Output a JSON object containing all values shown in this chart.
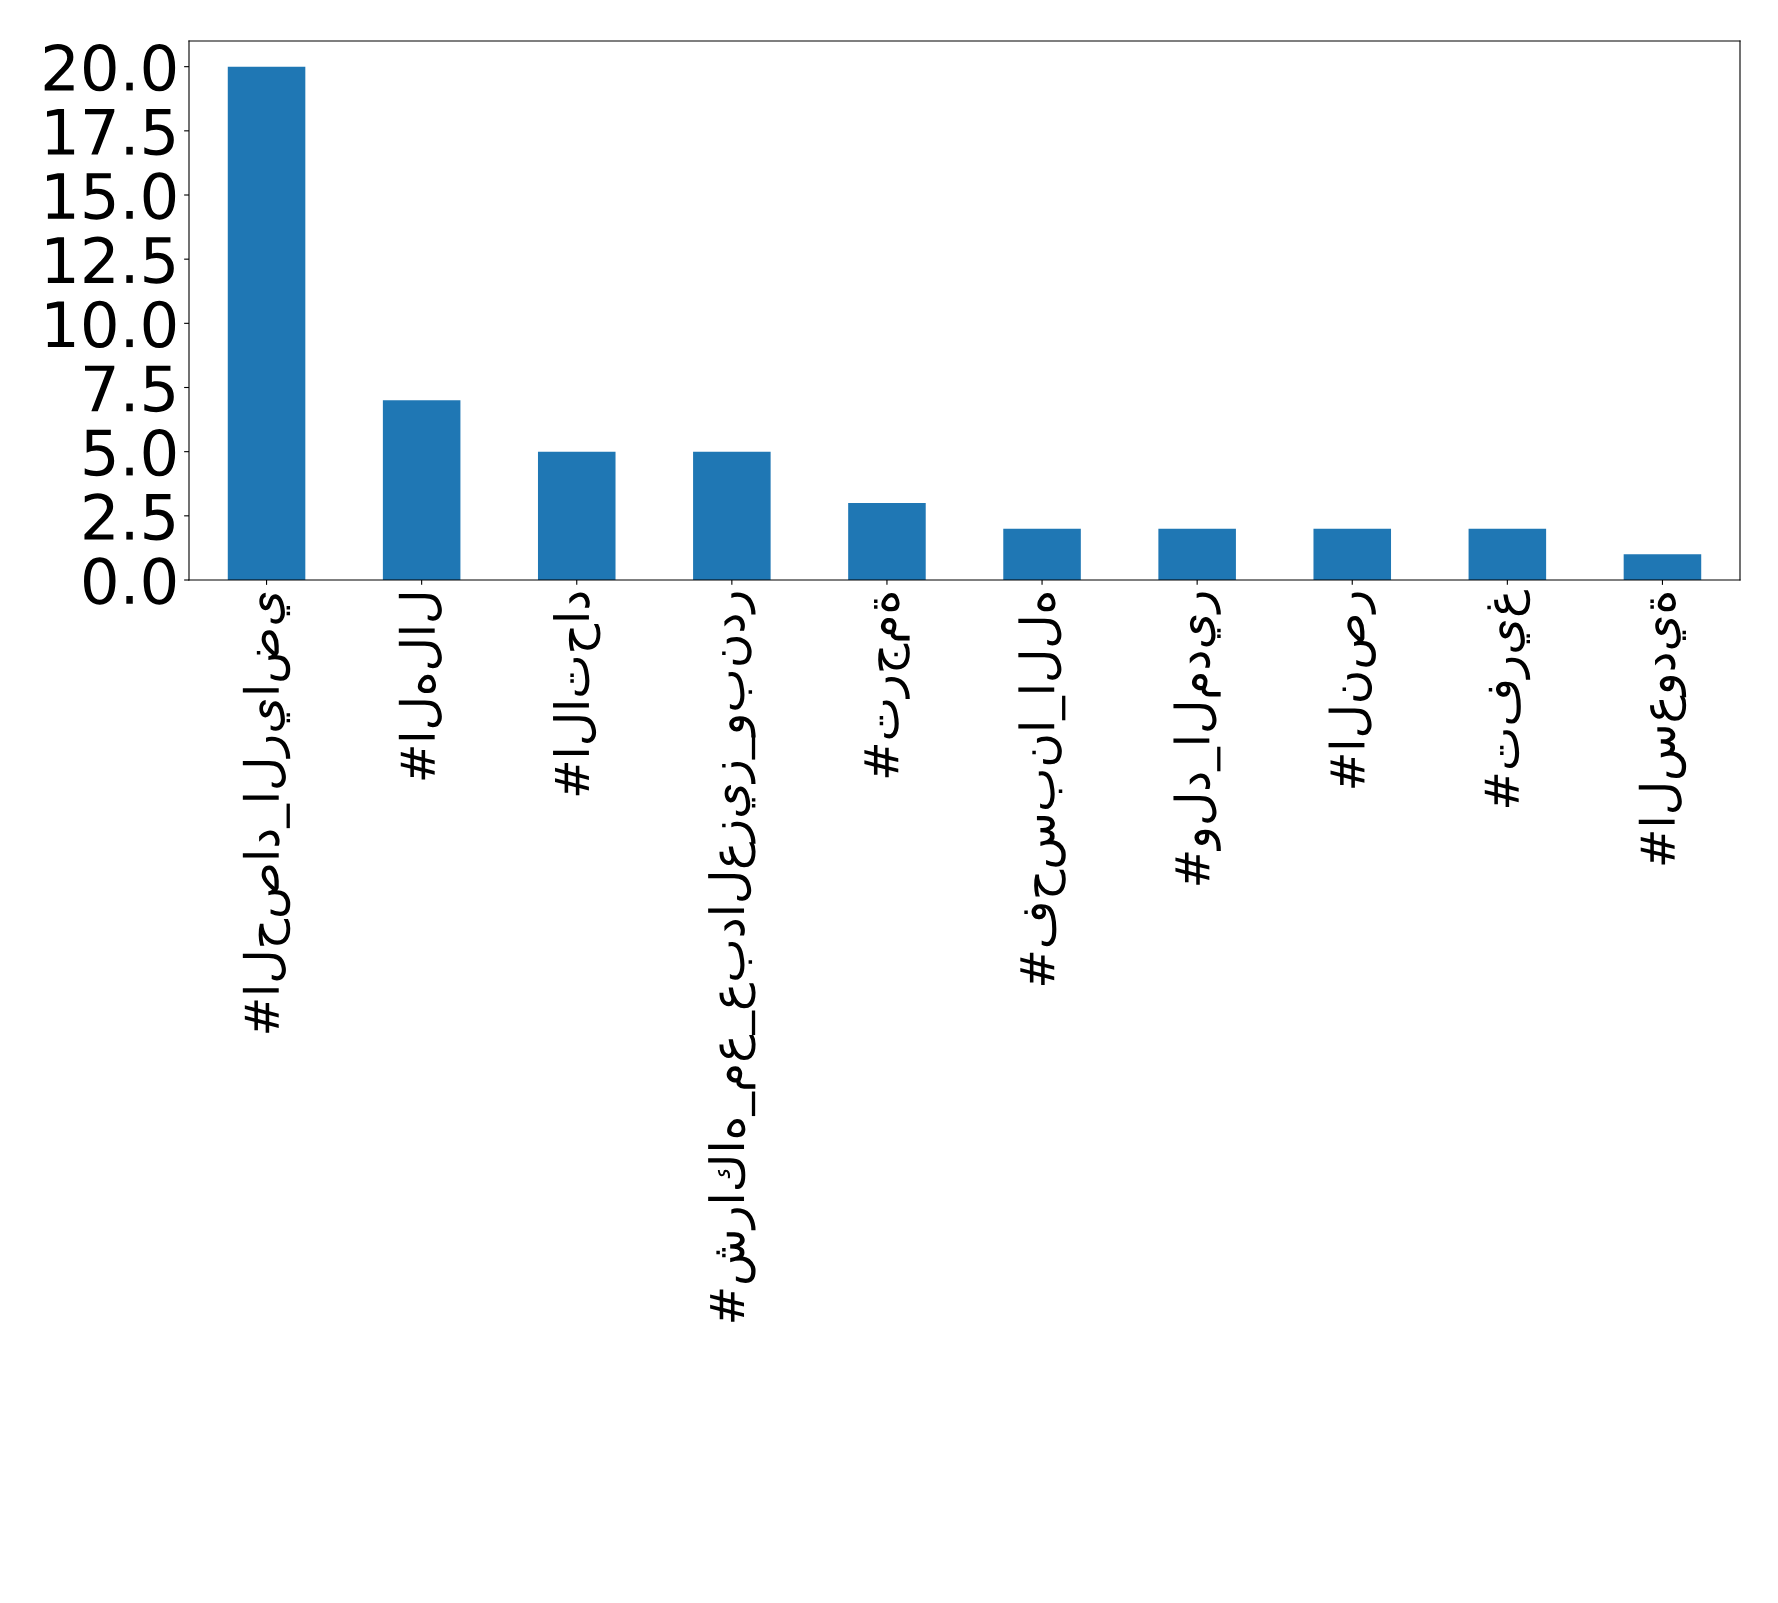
{
  "chart_data": {
    "type": "bar",
    "categories": [
      "#الحصاد_الرياضي",
      "#الهلال",
      "#الاتحاد",
      "#شراكاه_مع_عبدالعزيز_وبندر",
      "#ترجمة",
      "#فحسبنا_الله",
      "#ولد_المدير",
      "#النصر",
      "#تفريغ",
      "#السعودية"
    ],
    "values": [
      20,
      7,
      5,
      5,
      3,
      2,
      2,
      2,
      2,
      1
    ],
    "color": "#1f77b4",
    "ylim": [
      0,
      21
    ],
    "yticks": [
      {
        "value": 0,
        "label": "0.0"
      },
      {
        "value": 2.5,
        "label": "2.5"
      },
      {
        "value": 5,
        "label": "5.0"
      },
      {
        "value": 7.5,
        "label": "7.5"
      },
      {
        "value": 10,
        "label": "10.0"
      },
      {
        "value": 12.5,
        "label": "12.5"
      },
      {
        "value": 15,
        "label": "15.0"
      },
      {
        "value": 17.5,
        "label": "17.5"
      },
      {
        "value": 20,
        "label": "20.0"
      }
    ],
    "grid": false,
    "legend": false
  }
}
